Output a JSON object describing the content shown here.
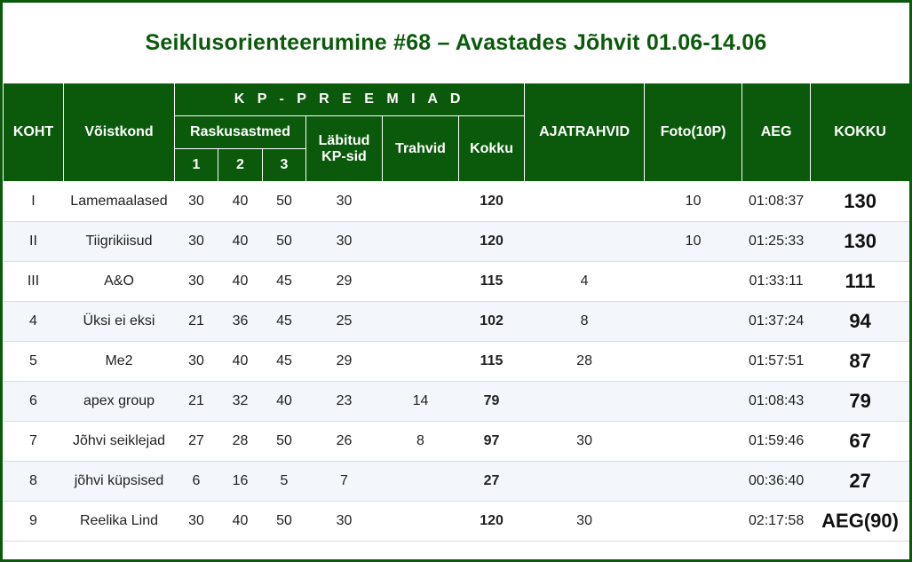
{
  "title": "Seiklusorienteerumine #68 – Avastades Jõhvit 01.06-14.06",
  "headers": {
    "koht": "KOHT",
    "voistkond": "Võistkond",
    "kp_preemiad": "K P - P R E E M I A D",
    "raskusastmed": "Raskusastmed",
    "r1": "1",
    "r2": "2",
    "r3": "3",
    "labitud_kp": "Läbitud KP-sid",
    "trahvid": "Trahvid",
    "kokku_sub": "Kokku",
    "ajatrahvid": "AJATRAHVID",
    "foto": "Foto(10P)",
    "aeg": "AEG",
    "kokku": "KOKKU"
  },
  "rows": [
    {
      "koht": "I",
      "team": "Lamemaalased",
      "r1": "30",
      "r2": "40",
      "r3": "50",
      "kp": "30",
      "trahvid": "",
      "kokku_sub": "120",
      "ajatrahvid": "",
      "foto": "10",
      "aeg": "01:08:37",
      "total": "130"
    },
    {
      "koht": "II",
      "team": "Tiigrikiisud",
      "r1": "30",
      "r2": "40",
      "r3": "50",
      "kp": "30",
      "trahvid": "",
      "kokku_sub": "120",
      "ajatrahvid": "",
      "foto": "10",
      "aeg": "01:25:33",
      "total": "130"
    },
    {
      "koht": "III",
      "team": "A&O",
      "r1": "30",
      "r2": "40",
      "r3": "45",
      "kp": "29",
      "trahvid": "",
      "kokku_sub": "115",
      "ajatrahvid": "4",
      "foto": "",
      "aeg": "01:33:11",
      "total": "111"
    },
    {
      "koht": "4",
      "team": "Üksi ei eksi",
      "r1": "21",
      "r2": "36",
      "r3": "45",
      "kp": "25",
      "trahvid": "",
      "kokku_sub": "102",
      "ajatrahvid": "8",
      "foto": "",
      "aeg": "01:37:24",
      "total": "94"
    },
    {
      "koht": "5",
      "team": "Me2",
      "r1": "30",
      "r2": "40",
      "r3": "45",
      "kp": "29",
      "trahvid": "",
      "kokku_sub": "115",
      "ajatrahvid": "28",
      "foto": "",
      "aeg": "01:57:51",
      "total": "87"
    },
    {
      "koht": "6",
      "team": "apex group",
      "r1": "21",
      "r2": "32",
      "r3": "40",
      "kp": "23",
      "trahvid": "14",
      "kokku_sub": "79",
      "ajatrahvid": "",
      "foto": "",
      "aeg": "01:08:43",
      "total": "79"
    },
    {
      "koht": "7",
      "team": "Jõhvi seiklejad",
      "r1": "27",
      "r2": "28",
      "r3": "50",
      "kp": "26",
      "trahvid": "8",
      "kokku_sub": "97",
      "ajatrahvid": "30",
      "foto": "",
      "aeg": "01:59:46",
      "total": "67"
    },
    {
      "koht": "8",
      "team": "jõhvi küpsised",
      "r1": "6",
      "r2": "16",
      "r3": "5",
      "kp": "7",
      "trahvid": "",
      "kokku_sub": "27",
      "ajatrahvid": "",
      "foto": "",
      "aeg": "00:36:40",
      "total": "27"
    },
    {
      "koht": "9",
      "team": "Reelika Lind",
      "r1": "30",
      "r2": "40",
      "r3": "50",
      "kp": "30",
      "trahvid": "",
      "kokku_sub": "120",
      "ajatrahvid": "30",
      "foto": "",
      "aeg": "02:17:58",
      "total": "AEG(90)"
    }
  ],
  "colors": {
    "header_bg": "#0b5a0b",
    "title": "#0b5a0b",
    "row_alt": "#f3f7fb"
  }
}
